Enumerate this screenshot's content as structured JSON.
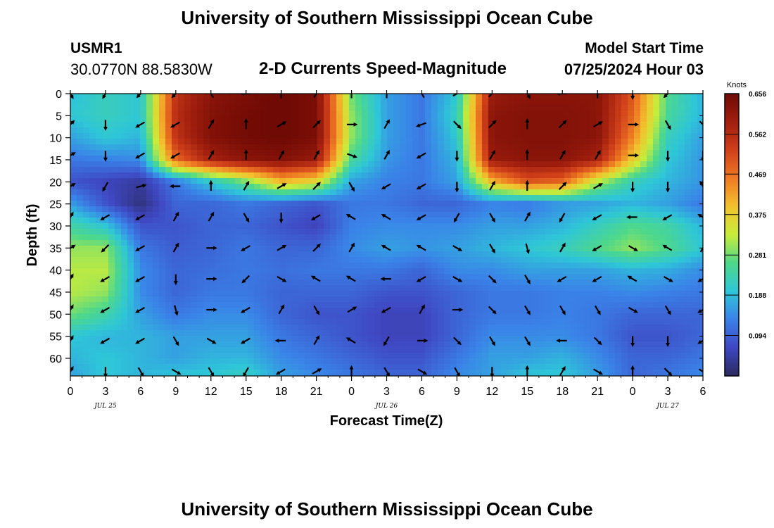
{
  "page": {
    "title_top": "University of Southern Mississippi Ocean Cube",
    "title_bottom": "University of Southern Mississippi Ocean Cube",
    "station_id": "USMR1",
    "coordinates": "30.0770N  88.5830W",
    "subtitle": "2-D Currents Speed-Magnitude",
    "model_start_label": "Model Start Time",
    "model_start_value": "07/25/2024 Hour 03"
  },
  "chart_data": {
    "type": "heatmap",
    "title": "2-D Currents Speed-Magnitude",
    "xlabel": "Forecast Time(Z)",
    "ylabel": "Depth (ft)",
    "x_hours": [
      0,
      3,
      6,
      9,
      12,
      15,
      18,
      21,
      24,
      27,
      30,
      33,
      36,
      39,
      42,
      45,
      48,
      51,
      54
    ],
    "x_tick_labels": [
      "0",
      "3",
      "6",
      "9",
      "12",
      "15",
      "18",
      "21",
      "0",
      "3",
      "6",
      "9",
      "12",
      "15",
      "18",
      "21",
      "0",
      "3",
      "6"
    ],
    "date_labels": [
      {
        "hour": 3,
        "text": "JUL 25"
      },
      {
        "hour": 27,
        "text": "JUL 26"
      },
      {
        "hour": 51,
        "text": "JUL 27"
      }
    ],
    "y_ticks": [
      0,
      5,
      10,
      15,
      20,
      25,
      30,
      35,
      40,
      45,
      50,
      55,
      60
    ],
    "ylim": [
      0,
      64
    ],
    "y_inverted": true,
    "colorbar": {
      "label": "Knots",
      "ticks": [
        0.094,
        0.188,
        0.281,
        0.375,
        0.469,
        0.562,
        0.656
      ],
      "range": [
        0,
        0.656
      ],
      "colors": [
        "#2a2a5e",
        "#3f47c2",
        "#3a82e8",
        "#2ec6d8",
        "#4ed88a",
        "#c8ec3a",
        "#f2c22e",
        "#ee7a22",
        "#d0401a",
        "#a01e0e",
        "#700a04"
      ]
    },
    "speed_depths_ft": [
      0,
      5,
      10,
      15,
      20,
      25,
      30,
      35,
      40,
      45,
      50,
      55,
      60,
      64
    ],
    "speed_grid_knots": [
      [
        0.19,
        0.22,
        0.2,
        0.55,
        0.62,
        0.64,
        0.66,
        0.64,
        0.28,
        0.16,
        0.12,
        0.2,
        0.6,
        0.62,
        0.62,
        0.62,
        0.5,
        0.26,
        0.18
      ],
      [
        0.2,
        0.22,
        0.2,
        0.56,
        0.63,
        0.65,
        0.66,
        0.64,
        0.3,
        0.16,
        0.12,
        0.22,
        0.62,
        0.63,
        0.63,
        0.62,
        0.48,
        0.25,
        0.18
      ],
      [
        0.16,
        0.2,
        0.18,
        0.55,
        0.63,
        0.65,
        0.66,
        0.64,
        0.3,
        0.16,
        0.12,
        0.2,
        0.62,
        0.63,
        0.63,
        0.62,
        0.45,
        0.22,
        0.16
      ],
      [
        0.12,
        0.13,
        0.14,
        0.48,
        0.58,
        0.62,
        0.63,
        0.6,
        0.25,
        0.15,
        0.12,
        0.18,
        0.6,
        0.62,
        0.62,
        0.58,
        0.38,
        0.2,
        0.15
      ],
      [
        0.08,
        0.06,
        0.04,
        0.12,
        0.2,
        0.28,
        0.4,
        0.36,
        0.16,
        0.13,
        0.12,
        0.16,
        0.4,
        0.5,
        0.48,
        0.32,
        0.22,
        0.18,
        0.15
      ],
      [
        0.16,
        0.08,
        0.02,
        0.1,
        0.1,
        0.12,
        0.1,
        0.08,
        0.12,
        0.12,
        0.1,
        0.1,
        0.13,
        0.12,
        0.15,
        0.16,
        0.18,
        0.16,
        0.12
      ],
      [
        0.24,
        0.2,
        0.08,
        0.08,
        0.1,
        0.1,
        0.08,
        0.06,
        0.13,
        0.14,
        0.14,
        0.14,
        0.16,
        0.16,
        0.18,
        0.22,
        0.26,
        0.24,
        0.18
      ],
      [
        0.3,
        0.3,
        0.12,
        0.09,
        0.1,
        0.12,
        0.1,
        0.1,
        0.14,
        0.16,
        0.15,
        0.16,
        0.18,
        0.2,
        0.22,
        0.26,
        0.3,
        0.26,
        0.2
      ],
      [
        0.32,
        0.32,
        0.14,
        0.1,
        0.11,
        0.12,
        0.11,
        0.12,
        0.12,
        0.12,
        0.1,
        0.14,
        0.14,
        0.16,
        0.16,
        0.16,
        0.18,
        0.17,
        0.14
      ],
      [
        0.32,
        0.3,
        0.14,
        0.1,
        0.12,
        0.12,
        0.1,
        0.1,
        0.1,
        0.08,
        0.08,
        0.1,
        0.12,
        0.12,
        0.13,
        0.13,
        0.14,
        0.13,
        0.12
      ],
      [
        0.28,
        0.24,
        0.16,
        0.12,
        0.14,
        0.14,
        0.1,
        0.08,
        0.08,
        0.06,
        0.06,
        0.1,
        0.12,
        0.12,
        0.13,
        0.12,
        0.1,
        0.1,
        0.1
      ],
      [
        0.2,
        0.18,
        0.18,
        0.16,
        0.16,
        0.16,
        0.12,
        0.1,
        0.08,
        0.06,
        0.06,
        0.1,
        0.14,
        0.14,
        0.14,
        0.12,
        0.08,
        0.08,
        0.1
      ],
      [
        0.18,
        0.2,
        0.18,
        0.16,
        0.18,
        0.18,
        0.14,
        0.12,
        0.1,
        0.08,
        0.08,
        0.12,
        0.16,
        0.16,
        0.18,
        0.14,
        0.1,
        0.1,
        0.12
      ],
      [
        0.16,
        0.2,
        0.18,
        0.2,
        0.2,
        0.22,
        0.16,
        0.14,
        0.12,
        0.1,
        0.1,
        0.14,
        0.16,
        0.2,
        0.2,
        0.16,
        0.1,
        0.12,
        0.14
      ]
    ],
    "arrow_depths_ft": [
      0,
      7,
      14,
      21,
      28,
      35,
      42,
      49,
      56,
      63
    ],
    "arrow_directions_deg": [
      [
        60,
        120,
        135,
        135,
        240,
        180,
        270,
        300,
        270,
        270,
        240,
        330,
        315,
        60,
        180,
        270,
        90,
        135,
        60
      ],
      [
        315,
        90,
        150,
        150,
        300,
        270,
        330,
        315,
        0,
        300,
        160,
        45,
        315,
        270,
        315,
        330,
        0,
        60,
        45
      ],
      [
        330,
        90,
        150,
        150,
        300,
        270,
        300,
        300,
        20,
        300,
        150,
        90,
        300,
        270,
        300,
        300,
        0,
        90,
        90
      ],
      [
        330,
        120,
        345,
        180,
        270,
        300,
        330,
        315,
        60,
        150,
        150,
        90,
        300,
        270,
        315,
        330,
        90,
        90,
        240
      ],
      [
        300,
        150,
        150,
        300,
        300,
        60,
        90,
        150,
        210,
        210,
        150,
        120,
        60,
        300,
        120,
        150,
        180,
        150,
        210
      ],
      [
        330,
        135,
        150,
        300,
        0,
        150,
        330,
        315,
        300,
        210,
        210,
        30,
        60,
        75,
        300,
        150,
        30,
        210,
        300
      ],
      [
        300,
        150,
        150,
        90,
        0,
        135,
        30,
        210,
        210,
        180,
        150,
        30,
        45,
        60,
        150,
        150,
        210,
        30,
        150
      ],
      [
        300,
        150,
        150,
        75,
        0,
        150,
        300,
        60,
        330,
        150,
        300,
        0,
        45,
        60,
        60,
        60,
        30,
        60,
        150
      ],
      [
        300,
        150,
        150,
        60,
        30,
        150,
        180,
        300,
        210,
        120,
        0,
        45,
        60,
        60,
        180,
        45,
        90,
        90,
        150
      ],
      [
        300,
        90,
        60,
        30,
        60,
        120,
        150,
        330,
        270,
        60,
        30,
        60,
        90,
        270,
        300,
        30,
        270,
        45,
        30
      ]
    ]
  }
}
